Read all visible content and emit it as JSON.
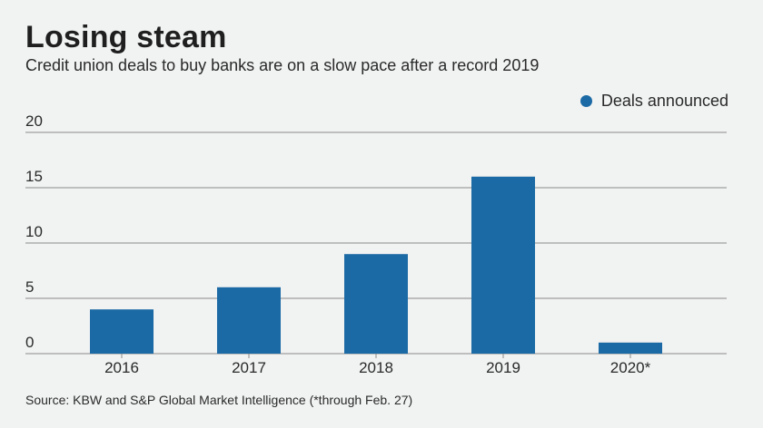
{
  "header": {
    "title": "Losing steam",
    "subtitle": "Credit union deals to buy banks are on a slow pace after a record 2019"
  },
  "legend": {
    "label": "Deals announced",
    "position": "top-right"
  },
  "footer": {
    "source": "Source: KBW and S&P Global Market Intelligence (*through Feb. 27)"
  },
  "colors": {
    "bar": "#1b6aa5",
    "background": "#f1f2f2",
    "grid": "#8a8a8a"
  },
  "chart_data": {
    "type": "bar",
    "title": "Losing steam",
    "subtitle": "Credit union deals to buy banks are on a slow pace after a record 2019",
    "categories": [
      "2016",
      "2017",
      "2018",
      "2019",
      "2020*"
    ],
    "series": [
      {
        "name": "Deals announced",
        "values": [
          4,
          6,
          9,
          16,
          1
        ]
      }
    ],
    "ylim": [
      0,
      20
    ],
    "yticks": [
      0,
      5,
      10,
      15,
      20
    ],
    "grid": true,
    "xlabel": "",
    "ylabel": ""
  }
}
